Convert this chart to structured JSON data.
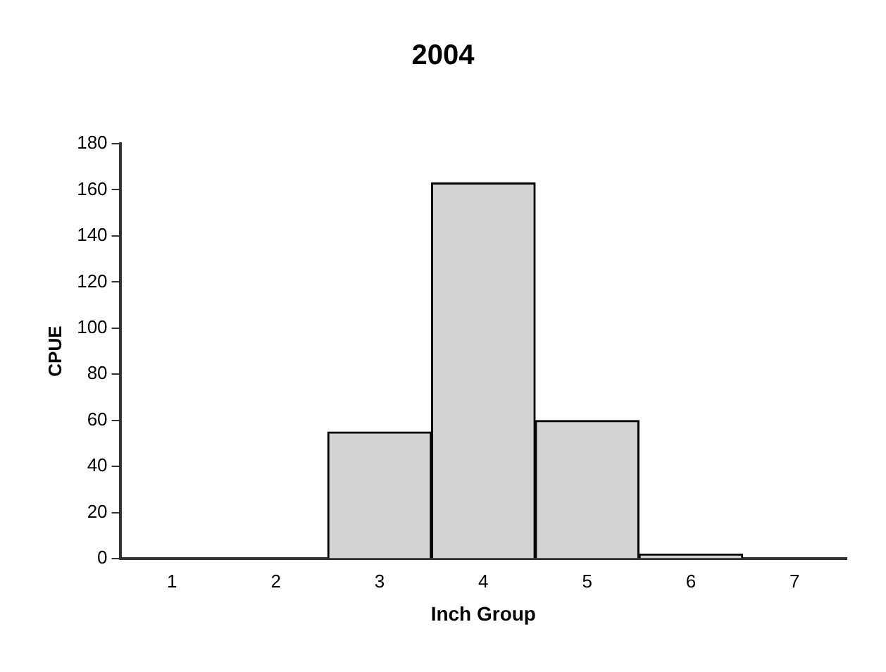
{
  "chart_data": {
    "type": "bar",
    "title": "2004",
    "xlabel": "Inch Group",
    "ylabel": "CPUE",
    "categories": [
      "1",
      "2",
      "3",
      "4",
      "5",
      "6",
      "7"
    ],
    "values": [
      0,
      0,
      55,
      163,
      60,
      2,
      0
    ],
    "color": "#d3d3d3",
    "ylim": [
      0,
      180
    ],
    "yticks": [
      0,
      20,
      40,
      60,
      80,
      100,
      120,
      140,
      160,
      180
    ],
    "grid": false,
    "legend": false
  }
}
